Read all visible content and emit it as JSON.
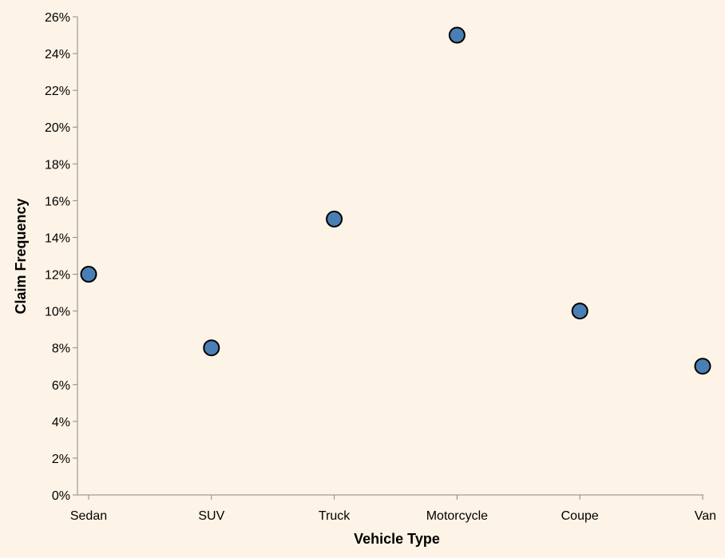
{
  "chart_data": {
    "type": "scatter",
    "title": "",
    "xlabel": "Vehicle Type",
    "ylabel": "Claim Frequency",
    "categories": [
      "Sedan",
      "SUV",
      "Truck",
      "Motorcycle",
      "Coupe",
      "Van"
    ],
    "values": [
      0.12,
      0.08,
      0.15,
      0.25,
      0.1,
      0.07
    ],
    "ylim": [
      0,
      0.26
    ],
    "y_ticks": [
      0,
      0.02,
      0.04,
      0.06,
      0.08,
      0.1,
      0.12,
      0.14,
      0.16,
      0.18,
      0.2,
      0.22,
      0.24,
      0.26
    ],
    "y_tick_labels": [
      "0%",
      "2%",
      "4%",
      "6%",
      "8%",
      "10%",
      "12%",
      "14%",
      "16%",
      "18%",
      "20%",
      "22%",
      "24%",
      "26%"
    ],
    "grid": false,
    "legend": "none",
    "colors": {
      "background": "#fdf3e6",
      "point_fill": "#4a7fb5",
      "point_stroke": "#000000",
      "axis": "#888888"
    }
  }
}
